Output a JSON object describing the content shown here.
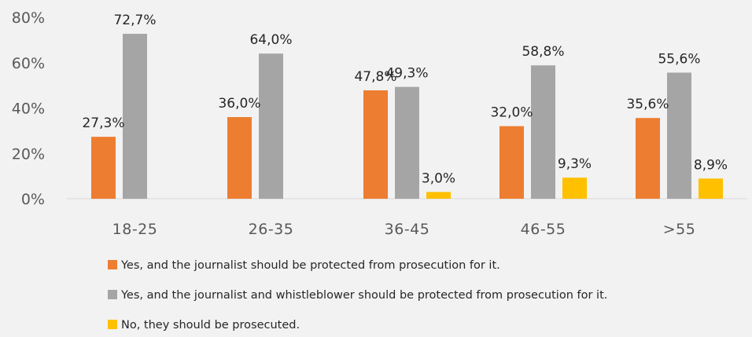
{
  "chart_data": {
    "type": "bar",
    "title": "",
    "xlabel": "",
    "ylabel": "",
    "categories": [
      "18-25",
      "26-35",
      "36-45",
      "46-55",
      ">55"
    ],
    "ylim": [
      0,
      80
    ],
    "yticks": [
      0,
      20,
      40,
      60,
      80
    ],
    "ytick_labels": [
      "0%",
      "20%",
      "40%",
      "60%",
      "80%"
    ],
    "grid": false,
    "legend_position": "bottom",
    "series": [
      {
        "name": "Yes, and the journalist should be protected from prosecution for it.",
        "color": "#ed7d31",
        "values": [
          27.3,
          36.0,
          47.8,
          32.0,
          35.6
        ],
        "labels": [
          "27,3%",
          "36,0%",
          "47,8%",
          "32,0%",
          "35,6%"
        ]
      },
      {
        "name": "Yes, and the journalist and whistleblower should be protected from prosecution for it.",
        "color": "#a5a5a5",
        "values": [
          72.7,
          64.0,
          49.3,
          58.8,
          55.6
        ],
        "labels": [
          "72,7%",
          "64,0%",
          "49,3%",
          "58,8%",
          "55,6%"
        ]
      },
      {
        "name": "No, they should be prosecuted.",
        "color": "#ffc000",
        "values": [
          null,
          null,
          3.0,
          9.3,
          8.9
        ],
        "labels": [
          null,
          null,
          "3,0%",
          "9,3%",
          "8,9%"
        ]
      }
    ]
  }
}
